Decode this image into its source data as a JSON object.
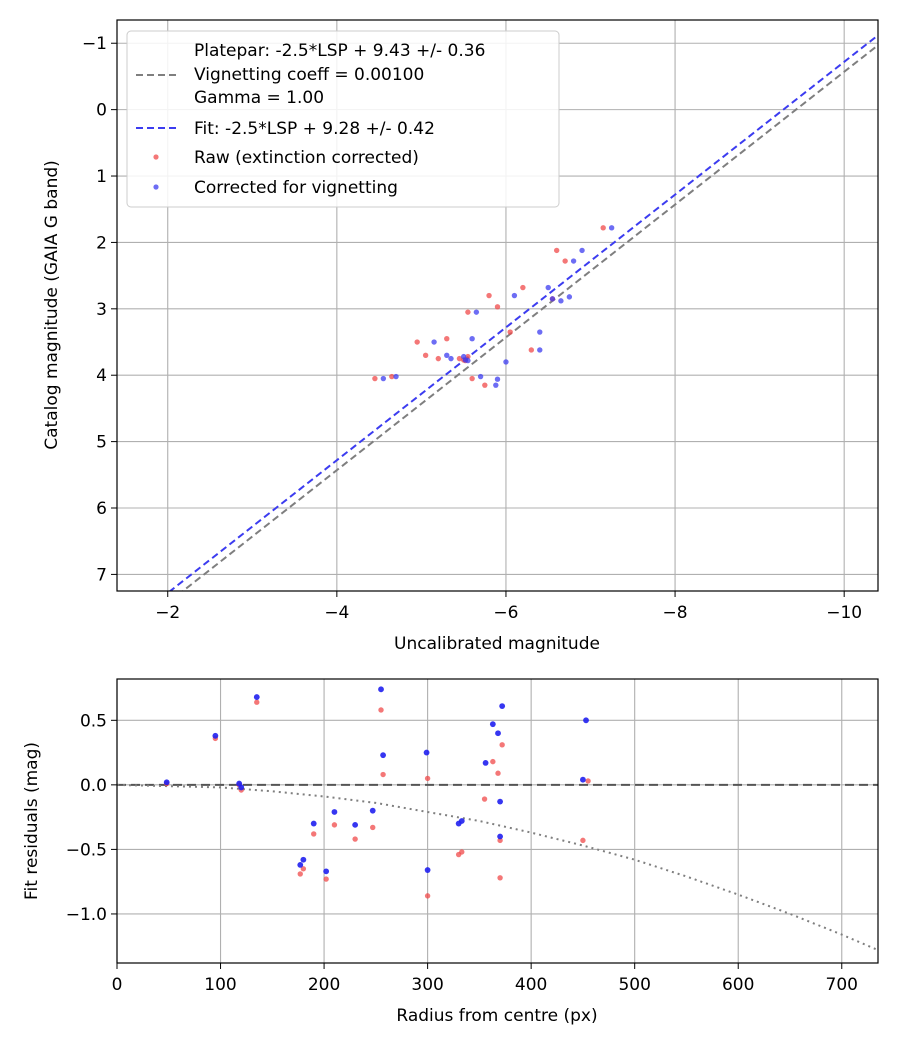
{
  "chart_data": [
    {
      "type": "scatter",
      "xlabel": "Uncalibrated magnitude",
      "ylabel": "Catalog magnitude (GAIA G band)",
      "xlim": [
        -1.4,
        -10.4
      ],
      "ylim": [
        7.25,
        -1.35
      ],
      "x_ticks": [
        -2,
        -4,
        -6,
        -8,
        -10
      ],
      "y_ticks": [
        -1,
        0,
        1,
        2,
        3,
        4,
        5,
        6,
        7
      ],
      "grid": true,
      "legend_position": "top-left",
      "legend": {
        "platepar_lines": [
          "Platepar: -2.5*LSP + 9.43 +/- 0.36",
          "Vignetting coeff = 0.00100",
          "Gamma = 1.00"
        ],
        "fit": "Fit: -2.5*LSP + 9.28 +/- 0.42",
        "raw": "Raw (extinction corrected)",
        "corrected": "Corrected for vignetting"
      },
      "lines": [
        {
          "name": "Platepar",
          "style": "dashed",
          "color": "#7f7f7f",
          "intercept": 9.43,
          "slope": 1
        },
        {
          "name": "Fit",
          "style": "dashed",
          "color": "#3c3cf0",
          "intercept": 9.28,
          "slope": 1
        }
      ],
      "series": [
        {
          "name": "Raw (extinction corrected)",
          "color": "#f04a4a",
          "points": [
            [
              -4.45,
              4.05
            ],
            [
              -4.65,
              4.02
            ],
            [
              -4.95,
              3.5
            ],
            [
              -5.05,
              3.7
            ],
            [
              -5.2,
              3.75
            ],
            [
              -5.3,
              3.45
            ],
            [
              -5.45,
              3.75
            ],
            [
              -5.5,
              3.77
            ],
            [
              -5.55,
              3.72
            ],
            [
              -5.52,
              3.78
            ],
            [
              -5.6,
              4.05
            ],
            [
              -5.55,
              3.05
            ],
            [
              -5.75,
              4.15
            ],
            [
              -5.8,
              2.8
            ],
            [
              -5.9,
              2.97
            ],
            [
              -6.05,
              3.35
            ],
            [
              -6.2,
              2.68
            ],
            [
              -6.3,
              3.62
            ],
            [
              -6.55,
              2.85
            ],
            [
              -6.6,
              2.12
            ],
            [
              -6.7,
              2.28
            ],
            [
              -7.15,
              1.78
            ]
          ]
        },
        {
          "name": "Corrected for vignetting",
          "color": "#3c3cf0",
          "points": [
            [
              -4.55,
              4.05
            ],
            [
              -4.7,
              4.02
            ],
            [
              -5.15,
              3.5
            ],
            [
              -5.3,
              3.7
            ],
            [
              -5.35,
              3.75
            ],
            [
              -5.5,
              3.72
            ],
            [
              -5.52,
              3.77
            ],
            [
              -5.55,
              3.78
            ],
            [
              -5.6,
              3.45
            ],
            [
              -5.65,
              3.05
            ],
            [
              -5.7,
              4.02
            ],
            [
              -5.9,
              4.06
            ],
            [
              -5.88,
              4.15
            ],
            [
              -6.0,
              3.8
            ],
            [
              -6.1,
              2.8
            ],
            [
              -6.4,
              3.35
            ],
            [
              -6.4,
              3.62
            ],
            [
              -6.5,
              2.68
            ],
            [
              -6.55,
              2.85
            ],
            [
              -6.65,
              2.88
            ],
            [
              -6.75,
              2.82
            ],
            [
              -6.8,
              2.28
            ],
            [
              -6.9,
              2.12
            ],
            [
              -7.25,
              1.78
            ]
          ]
        }
      ]
    },
    {
      "type": "scatter",
      "xlabel": "Radius from centre (px)",
      "ylabel": "Fit residuals (mag)",
      "xlim": [
        0,
        735
      ],
      "ylim": [
        -1.38,
        0.82
      ],
      "x_ticks": [
        0,
        100,
        200,
        300,
        400,
        500,
        600,
        700
      ],
      "y_ticks": [
        0.5,
        0.0,
        -0.5,
        -1.0
      ],
      "y_tick_labels": [
        "0.5",
        "0.0",
        "−0.5",
        "−1.0"
      ],
      "grid": true,
      "lines": [
        {
          "name": "zero",
          "style": "dashed",
          "color": "#555555",
          "y": 0
        },
        {
          "name": "vignetting curve",
          "style": "dotted",
          "color": "#7f7f7f",
          "points": [
            [
              0,
              0
            ],
            [
              100,
              -0.02
            ],
            [
              150,
              -0.05
            ],
            [
              200,
              -0.09
            ],
            [
              250,
              -0.14
            ],
            [
              300,
              -0.21
            ],
            [
              350,
              -0.28
            ],
            [
              400,
              -0.37
            ],
            [
              450,
              -0.47
            ],
            [
              500,
              -0.58
            ],
            [
              550,
              -0.71
            ],
            [
              600,
              -0.85
            ],
            [
              650,
              -1.0
            ],
            [
              700,
              -1.16
            ],
            [
              735,
              -1.28
            ]
          ]
        }
      ],
      "series": [
        {
          "name": "Raw (extinction corrected)",
          "color": "#f04a4a",
          "points": [
            [
              48,
              0.01
            ],
            [
              95,
              0.36
            ],
            [
              118,
              0.0
            ],
            [
              120,
              -0.04
            ],
            [
              135,
              0.64
            ],
            [
              177,
              -0.69
            ],
            [
              180,
              -0.65
            ],
            [
              190,
              -0.38
            ],
            [
              202,
              -0.73
            ],
            [
              210,
              -0.31
            ],
            [
              230,
              -0.42
            ],
            [
              247,
              -0.33
            ],
            [
              255,
              0.58
            ],
            [
              257,
              0.08
            ],
            [
              300,
              0.05
            ],
            [
              300,
              -0.86
            ],
            [
              330,
              -0.54
            ],
            [
              333,
              -0.52
            ],
            [
              355,
              -0.11
            ],
            [
              363,
              0.18
            ],
            [
              368,
              0.09
            ],
            [
              370,
              -0.72
            ],
            [
              370,
              -0.43
            ],
            [
              372,
              0.31
            ],
            [
              450,
              -0.43
            ],
            [
              455,
              0.03
            ]
          ]
        },
        {
          "name": "Corrected for vignetting",
          "color": "#2020f0",
          "points": [
            [
              48,
              0.02
            ],
            [
              95,
              0.38
            ],
            [
              118,
              0.01
            ],
            [
              120,
              -0.02
            ],
            [
              135,
              0.68
            ],
            [
              177,
              -0.62
            ],
            [
              180,
              -0.58
            ],
            [
              190,
              -0.3
            ],
            [
              202,
              -0.67
            ],
            [
              210,
              -0.21
            ],
            [
              230,
              -0.31
            ],
            [
              247,
              -0.2
            ],
            [
              255,
              0.74
            ],
            [
              257,
              0.23
            ],
            [
              299,
              0.25
            ],
            [
              300,
              -0.66
            ],
            [
              330,
              -0.3
            ],
            [
              333,
              -0.28
            ],
            [
              356,
              0.17
            ],
            [
              363,
              0.47
            ],
            [
              368,
              0.4
            ],
            [
              370,
              -0.4
            ],
            [
              370,
              -0.13
            ],
            [
              372,
              0.61
            ],
            [
              450,
              0.04
            ],
            [
              453,
              0.5
            ]
          ]
        }
      ]
    }
  ]
}
